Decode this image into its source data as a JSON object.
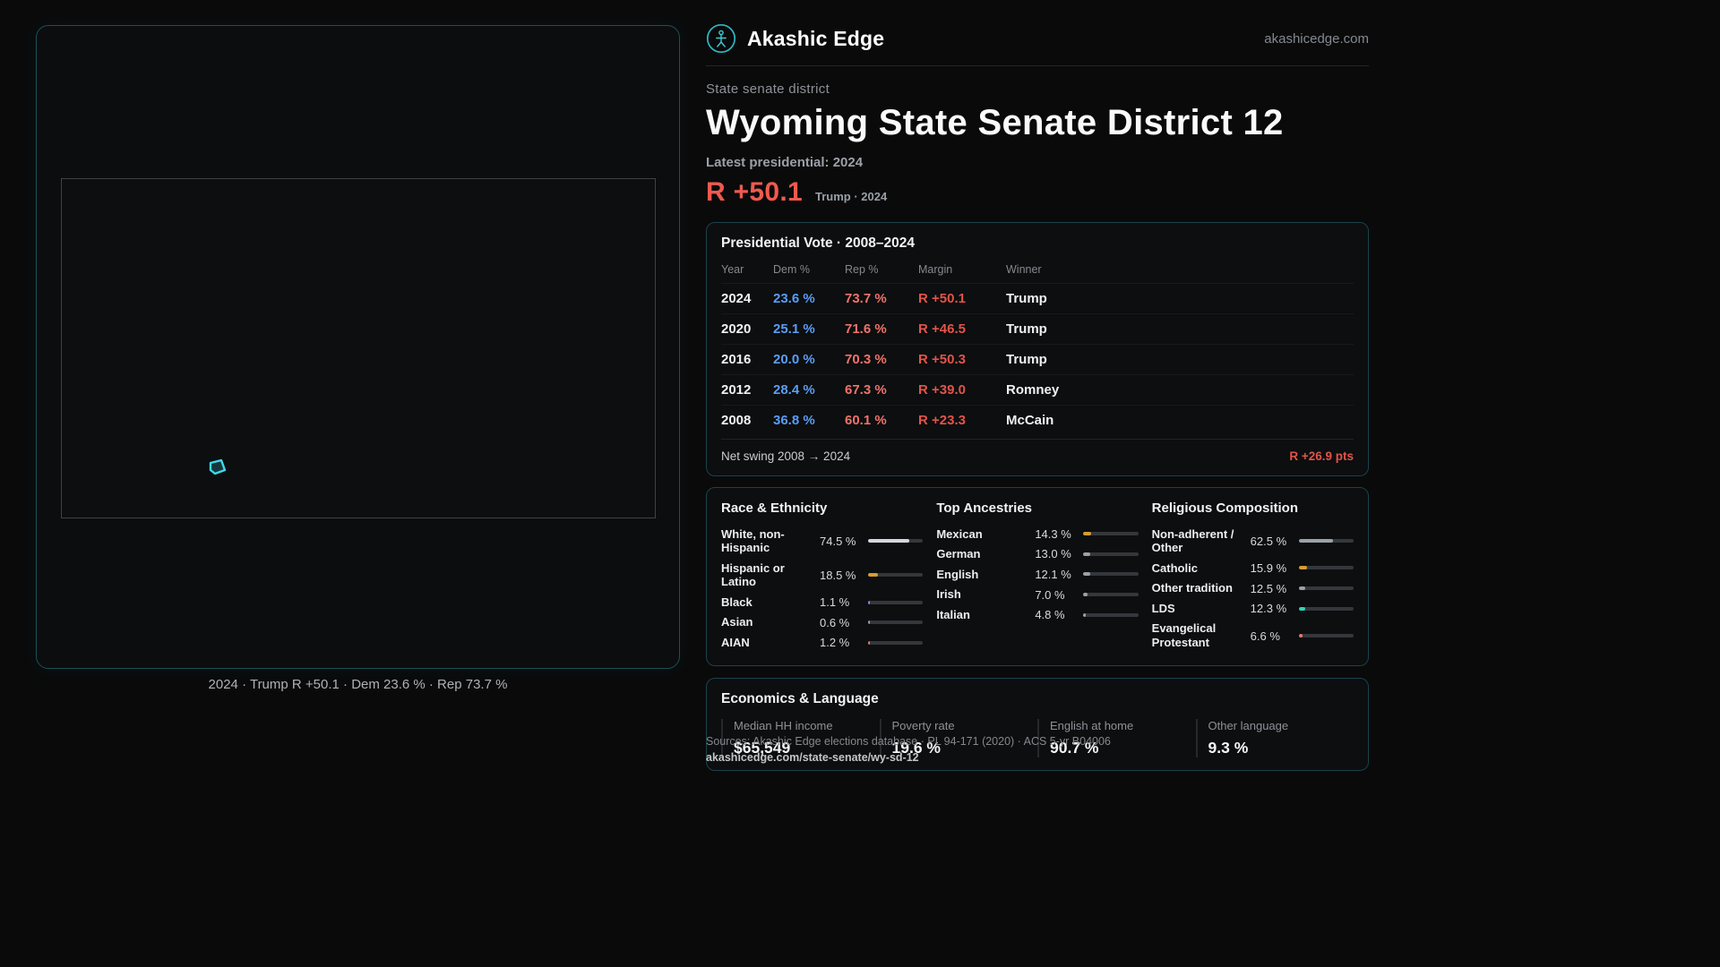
{
  "brand": {
    "name": "Akashic Edge",
    "domain": "akashicedge.com"
  },
  "page": {
    "eyebrow": "State senate district",
    "title": "Wyoming State Senate District 12",
    "latest_label": "Latest presidential: 2024",
    "headline_margin": "R +50.1",
    "headline_context": "Trump · 2024"
  },
  "map": {
    "caption": "2024 · Trump R +50.1 · Dem 23.6 % · Rep 73.7 %"
  },
  "presidential": {
    "title": "Presidential Vote · 2008–2024",
    "columns": [
      "Year",
      "Dem %",
      "Rep %",
      "Margin",
      "Winner"
    ],
    "rows": [
      {
        "year": "2024",
        "dem": "23.6 %",
        "rep": "73.7 %",
        "margin": "R +50.1",
        "winner": "Trump"
      },
      {
        "year": "2020",
        "dem": "25.1 %",
        "rep": "71.6 %",
        "margin": "R +46.5",
        "winner": "Trump"
      },
      {
        "year": "2016",
        "dem": "20.0 %",
        "rep": "70.3 %",
        "margin": "R +50.3",
        "winner": "Trump"
      },
      {
        "year": "2012",
        "dem": "28.4 %",
        "rep": "67.3 %",
        "margin": "R +39.0",
        "winner": "Romney"
      },
      {
        "year": "2008",
        "dem": "36.8 %",
        "rep": "60.1 %",
        "margin": "R +23.3",
        "winner": "McCain"
      }
    ],
    "net_swing_label": "Net swing 2008 → 2024",
    "net_swing_value": "R +26.9 pts"
  },
  "demographics": {
    "race": {
      "title": "Race & Ethnicity",
      "rows": [
        {
          "label": "White, non-Hispanic",
          "value": "74.5 %",
          "pct": 74.5,
          "color": "#d3d7dc"
        },
        {
          "label": "Hispanic or Latino",
          "value": "18.5 %",
          "pct": 18.5,
          "color": "#d99c2e"
        },
        {
          "label": "Black",
          "value": "1.1 %",
          "pct": 1.1,
          "color": "#7f8cf5"
        },
        {
          "label": "Asian",
          "value": "0.6 %",
          "pct": 0.6,
          "color": "#9aa1a9"
        },
        {
          "label": "AIAN",
          "value": "1.2 %",
          "pct": 1.2,
          "color": "#f0736b"
        }
      ]
    },
    "ancestries": {
      "title": "Top Ancestries",
      "rows": [
        {
          "label": "Mexican",
          "value": "14.3 %",
          "pct": 14.3,
          "color": "#d99c2e"
        },
        {
          "label": "German",
          "value": "13.0 %",
          "pct": 13.0,
          "color": "#9aa1a9"
        },
        {
          "label": "English",
          "value": "12.1 %",
          "pct": 12.1,
          "color": "#9aa1a9"
        },
        {
          "label": "Irish",
          "value": "7.0 %",
          "pct": 7.0,
          "color": "#9aa1a9"
        },
        {
          "label": "Italian",
          "value": "4.8 %",
          "pct": 4.8,
          "color": "#9aa1a9"
        }
      ]
    },
    "religion": {
      "title": "Religious Composition",
      "rows": [
        {
          "label": "Non-adherent / Other",
          "value": "62.5 %",
          "pct": 62.5,
          "color": "#9aa1a9"
        },
        {
          "label": "Catholic",
          "value": "15.9 %",
          "pct": 15.9,
          "color": "#d99c2e"
        },
        {
          "label": "Other tradition",
          "value": "12.5 %",
          "pct": 12.5,
          "color": "#9aa1a9"
        },
        {
          "label": "LDS",
          "value": "12.3 %",
          "pct": 12.3,
          "color": "#2fd4b8"
        },
        {
          "label": "Evangelical Protestant",
          "value": "6.6 %",
          "pct": 6.6,
          "color": "#f0736b"
        }
      ]
    }
  },
  "economics": {
    "title": "Economics & Language",
    "stats": [
      {
        "label": "Median HH income",
        "value": "$65,549"
      },
      {
        "label": "Poverty rate",
        "value": "19.6 %"
      },
      {
        "label": "English at home",
        "value": "90.7 %"
      },
      {
        "label": "Other language",
        "value": "9.3 %"
      }
    ]
  },
  "footer": {
    "sources": "Sources: Akashic Edge elections database · PL 94-171 (2020) · ACS 5-yr B04006",
    "permalink": "akashicedge.com/state-senate/wy-sd-12"
  },
  "colors": {
    "accent_teal": "#2fd4b8",
    "accent_cyan": "#3fd8ea",
    "dem_blue": "#5b9df5",
    "rep_red": "#f0736b",
    "margin_red": "#e2544a"
  }
}
